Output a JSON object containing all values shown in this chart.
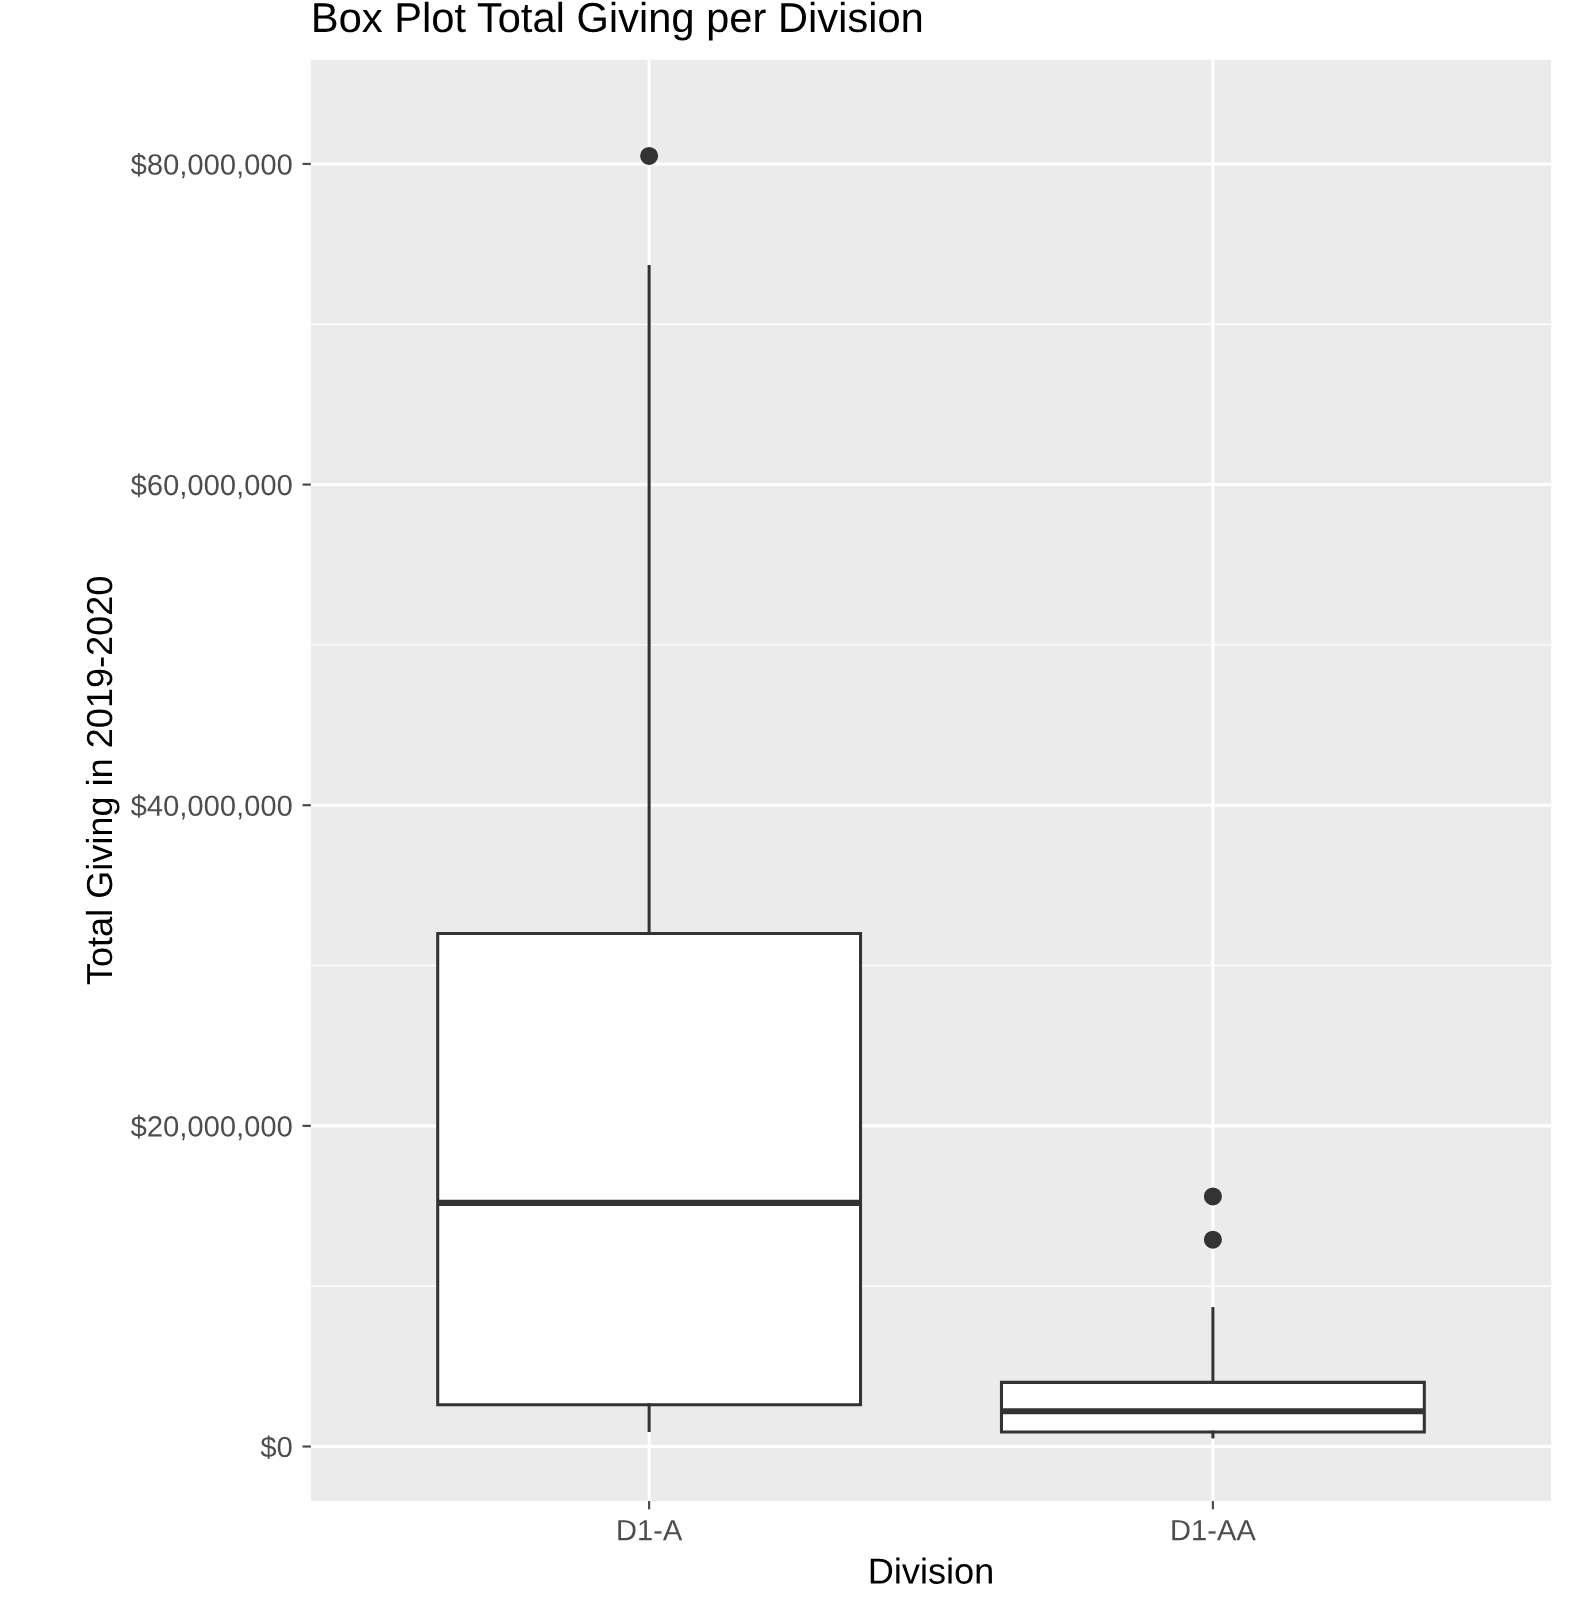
{
  "chart_data": {
    "type": "box",
    "title": "Box Plot Total Giving per Division",
    "xlabel": "Division",
    "ylabel": "Total Giving in 2019-2020",
    "categories": [
      "D1-A",
      "D1-AA"
    ],
    "boxes": [
      {
        "low": 1000000,
        "q1": 2600000,
        "median": 15200000,
        "q3": 32000000,
        "high": 73600000,
        "outliers": [
          80500000
        ]
      },
      {
        "low": 600000,
        "q1": 900000,
        "median": 2200000,
        "q3": 4000000,
        "high": 8600000,
        "outliers": [
          15600000,
          12900000
        ]
      }
    ],
    "ylim": [
      -3400000,
      86500000
    ],
    "yticks": [
      {
        "value": 0,
        "label": "$0"
      },
      {
        "value": 10000000,
        "label": null
      },
      {
        "value": 20000000,
        "label": "$20,000,000"
      },
      {
        "value": 30000000,
        "label": null
      },
      {
        "value": 40000000,
        "label": "$40,000,000"
      },
      {
        "value": 50000000,
        "label": null
      },
      {
        "value": 60000000,
        "label": "$60,000,000"
      },
      {
        "value": 70000000,
        "label": null
      },
      {
        "value": 80000000,
        "label": "$80,000,000"
      }
    ],
    "grid": true
  }
}
